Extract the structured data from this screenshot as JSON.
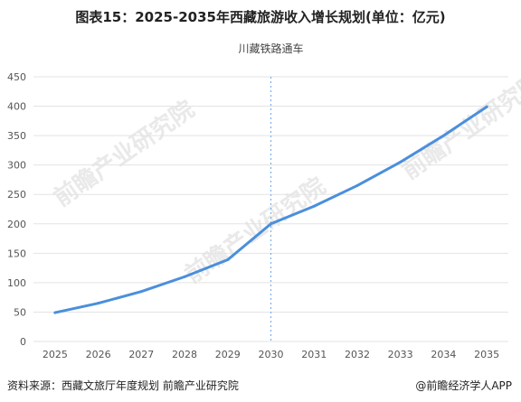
{
  "title": "图表15：2025-2035年西藏旅游收入增长规划(单位：亿元)",
  "annotation": "川藏铁路通车",
  "footer": {
    "source": "资料来源：西藏文旅厅年度规划 前瞻产业研究院",
    "brand": "@前瞻经济学人APP"
  },
  "watermark": "前瞻产业研究院",
  "colors": {
    "line": "#4a8fdc",
    "marker_line": "#6fa8e6",
    "grid": "#e3e3e3"
  },
  "chart_data": {
    "type": "line",
    "title": "图表15：2025-2035年西藏旅游收入增长规划(单位：亿元)",
    "xlabel": "",
    "ylabel": "",
    "x": [
      "2025",
      "2026",
      "2027",
      "2028",
      "2029",
      "2030",
      "2031",
      "2032",
      "2033",
      "2034",
      "2035"
    ],
    "series": [
      {
        "values": [
          49,
          65,
          85,
          110,
          139,
          200,
          230,
          265,
          305,
          350,
          399
        ]
      }
    ],
    "ylim": [
      0,
      450
    ],
    "yticks": [
      0,
      50,
      100,
      150,
      200,
      250,
      300,
      350,
      400,
      450
    ],
    "grid": true,
    "annotations": [
      {
        "x": "2030",
        "text": "川藏铁路通车",
        "style": "dotted-vertical-line"
      }
    ]
  }
}
